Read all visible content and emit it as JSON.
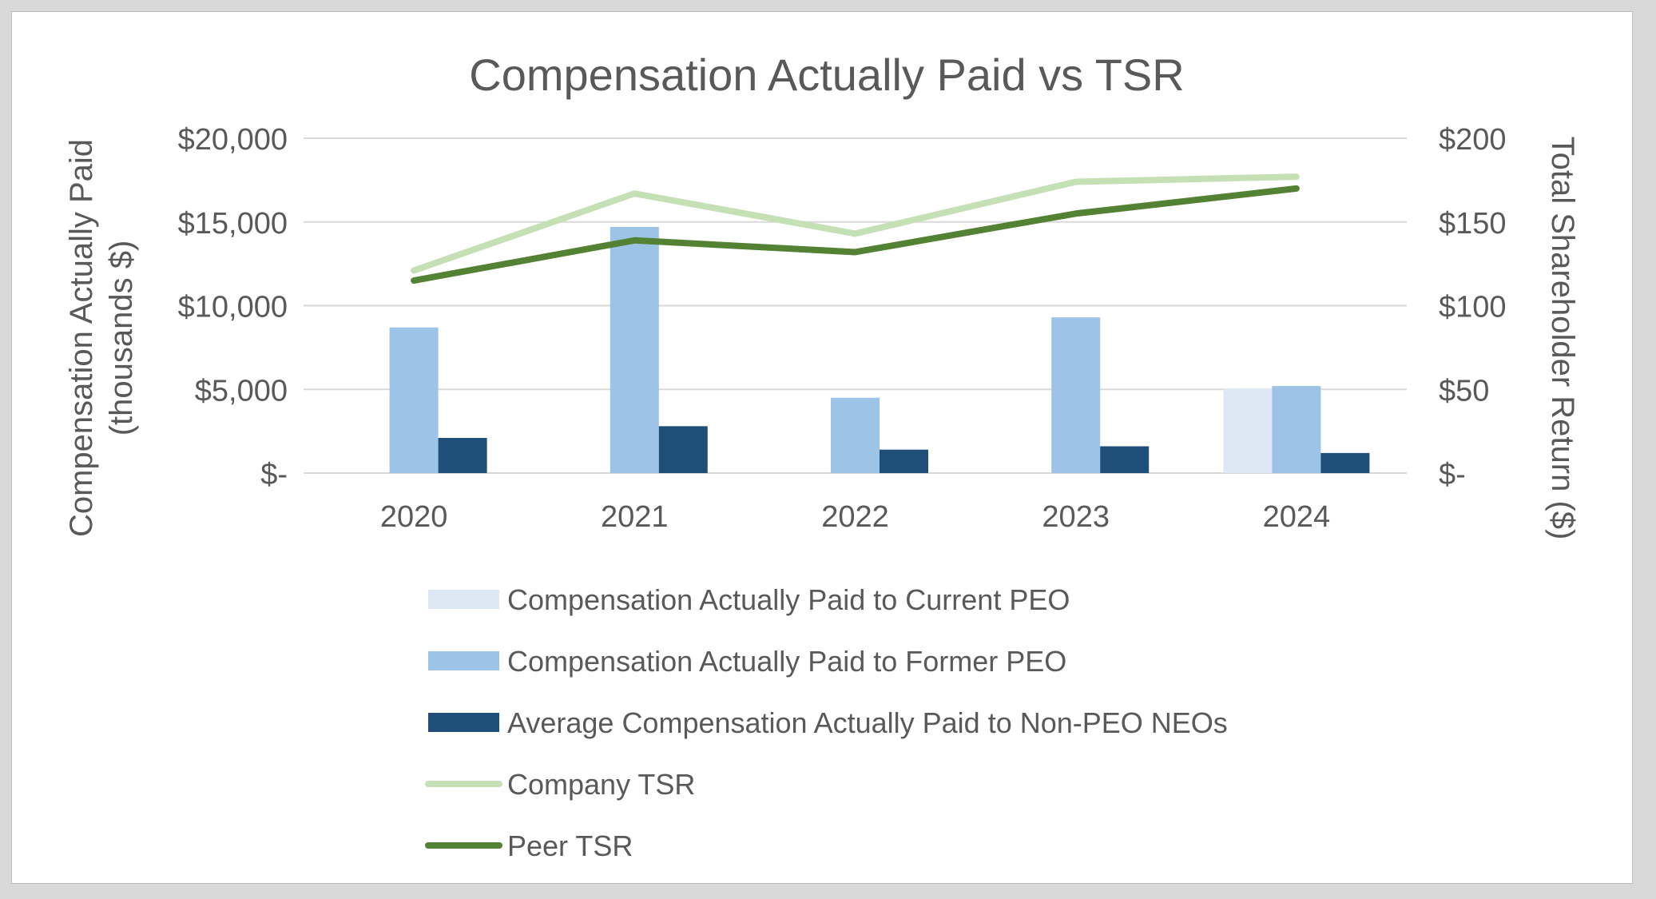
{
  "chart_data": {
    "type": "bar",
    "title": "Compensation Actually Paid vs TSR",
    "ylabel_left_line1": "Compensation Actually Paid",
    "ylabel_left_line2": "(thousands $)",
    "ylabel_right": "Total Shareholder Return ($)",
    "categories": [
      "2020",
      "2021",
      "2022",
      "2023",
      "2024"
    ],
    "ylim_left": [
      0,
      20000
    ],
    "ylim_right": [
      0,
      200
    ],
    "left_ticks": [
      {
        "value": 0,
        "label": "$-"
      },
      {
        "value": 5000,
        "label": "$5,000"
      },
      {
        "value": 10000,
        "label": "$10,000"
      },
      {
        "value": 15000,
        "label": "$15,000"
      },
      {
        "value": 20000,
        "label": "$20,000"
      }
    ],
    "right_ticks": [
      {
        "value": 0,
        "label": "$-"
      },
      {
        "value": 50,
        "label": "$50"
      },
      {
        "value": 100,
        "label": "$100"
      },
      {
        "value": 150,
        "label": "$150"
      },
      {
        "value": 200,
        "label": "$200"
      }
    ],
    "grid": true,
    "legend_position": "bottom",
    "series": [
      {
        "name": "Compensation Actually Paid to Current PEO",
        "kind": "bar",
        "axis": "left",
        "color": "#dde8f4",
        "values": [
          null,
          null,
          null,
          null,
          5050
        ]
      },
      {
        "name": "Compensation Actually Paid to Former PEO",
        "kind": "bar",
        "axis": "left",
        "color": "#9dc3e6",
        "values": [
          8700,
          14700,
          4500,
          9300,
          5200
        ]
      },
      {
        "name": "Average Compensation Actually Paid to Non-PEO NEOs",
        "kind": "bar",
        "axis": "left",
        "color": "#1f4e79",
        "values": [
          2100,
          2800,
          1400,
          1600,
          1200
        ]
      },
      {
        "name": "Company TSR",
        "kind": "line",
        "axis": "right",
        "color": "#c5e0b4",
        "values": [
          121,
          167,
          143,
          174,
          177
        ]
      },
      {
        "name": "Peer TSR",
        "kind": "line",
        "axis": "right",
        "color": "#548235",
        "values": [
          115,
          139,
          132,
          155,
          170
        ]
      }
    ]
  }
}
